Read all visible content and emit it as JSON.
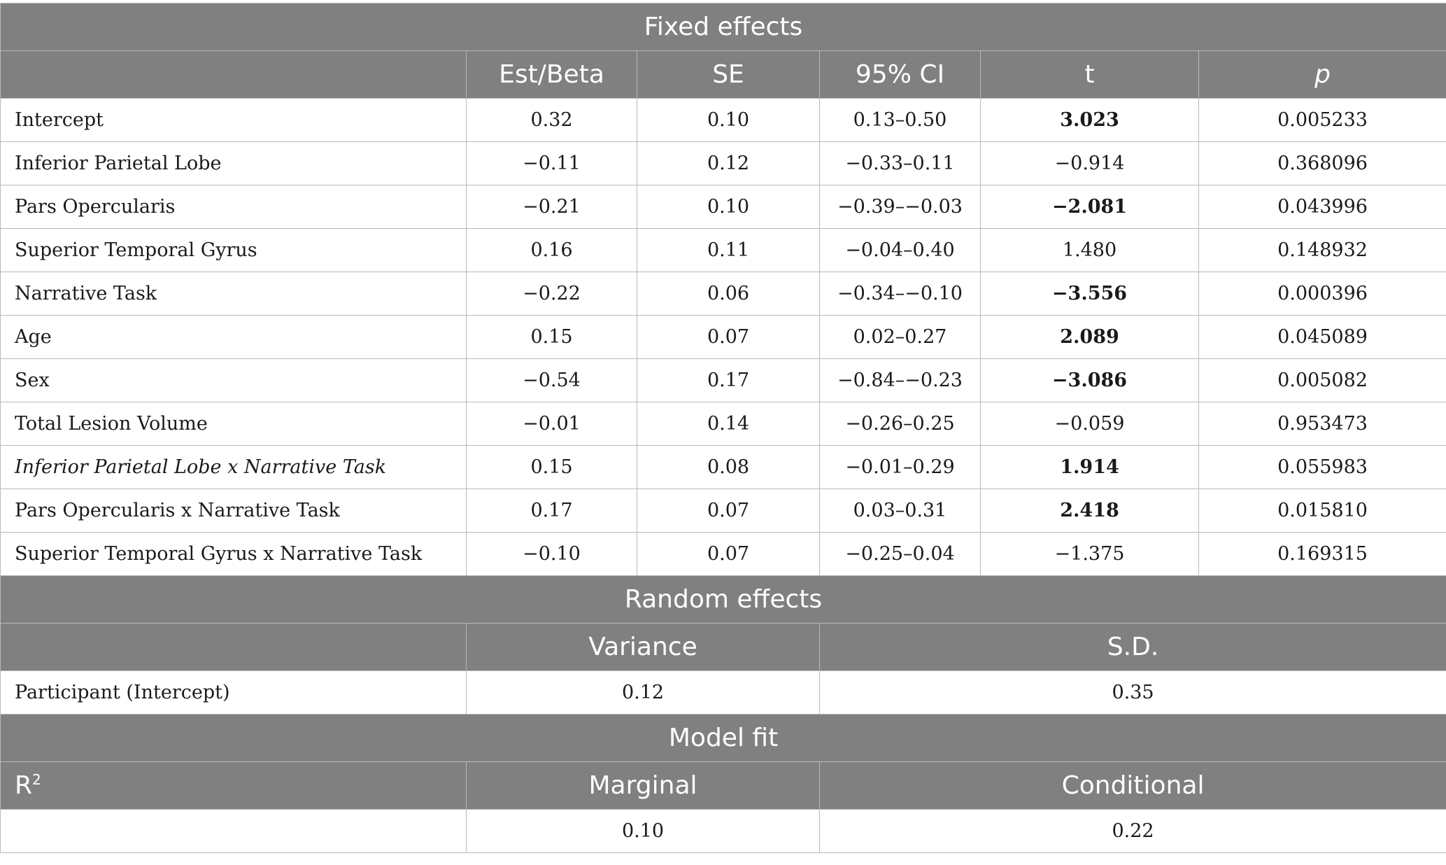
{
  "fixed": {
    "title": "Fixed effects",
    "columns": [
      "",
      "Est/Beta",
      "SE",
      "95% CI",
      "t",
      "p"
    ],
    "rows": [
      {
        "label": "Intercept",
        "est": "0.32",
        "se": "0.10",
        "ci": "0.13–0.50",
        "t": "3.023",
        "p": "0.005233"
      },
      {
        "label": "Inferior Parietal Lobe",
        "est": "−0.11",
        "se": "0.12",
        "ci": "−0.33–0.11",
        "t": "−0.914",
        "p": "0.368096"
      },
      {
        "label": "Pars Opercularis",
        "est": "−0.21",
        "se": "0.10",
        "ci": "−0.39–−0.03",
        "t": "−2.081",
        "p": "0.043996"
      },
      {
        "label": "Superior Temporal Gyrus",
        "est": "0.16",
        "se": "0.11",
        "ci": "−0.04–0.40",
        "t": "1.480",
        "p": "0.148932"
      },
      {
        "label": "Narrative Task",
        "est": "−0.22",
        "se": "0.06",
        "ci": "−0.34–−0.10",
        "t": "−3.556",
        "p": "0.000396"
      },
      {
        "label": "Age",
        "est": "0.15",
        "se": "0.07",
        "ci": "0.02–0.27",
        "t": "2.089",
        "p": "0.045089"
      },
      {
        "label": "Sex",
        "est": "−0.54",
        "se": "0.17",
        "ci": "−0.84–−0.23",
        "t": "−3.086",
        "p": "0.005082"
      },
      {
        "label": "Total Lesion Volume",
        "est": "−0.01",
        "se": "0.14",
        "ci": "−0.26–0.25",
        "t": "−0.059",
        "p": "0.953473"
      },
      {
        "label": "Inferior Parietal Lobe x Narrative Task",
        "est": "0.15",
        "se": "0.08",
        "ci": "−0.01–0.29",
        "t": "1.914",
        "p": "0.055983"
      },
      {
        "label": "Pars Opercularis x Narrative Task",
        "est": "0.17",
        "se": "0.07",
        "ci": "0.03–0.31",
        "t": "2.418",
        "p": "0.015810"
      },
      {
        "label": "Superior Temporal Gyrus x Narrative Task",
        "est": "−0.10",
        "se": "0.07",
        "ci": "−0.25–0.04",
        "t": "−1.375",
        "p": "0.169315"
      }
    ]
  },
  "random": {
    "title": "Random effects",
    "columns": [
      "",
      "Variance",
      "S.D."
    ],
    "row": {
      "label": "Participant (Intercept)",
      "variance": "0.12",
      "sd": "0.35"
    }
  },
  "model_fit": {
    "title": "Model fit",
    "r_label": "R",
    "r_sup": "2",
    "columns": [
      "Marginal",
      "Conditional"
    ],
    "row": {
      "label": "",
      "marginal": "0.10",
      "conditional": "0.22"
    }
  }
}
